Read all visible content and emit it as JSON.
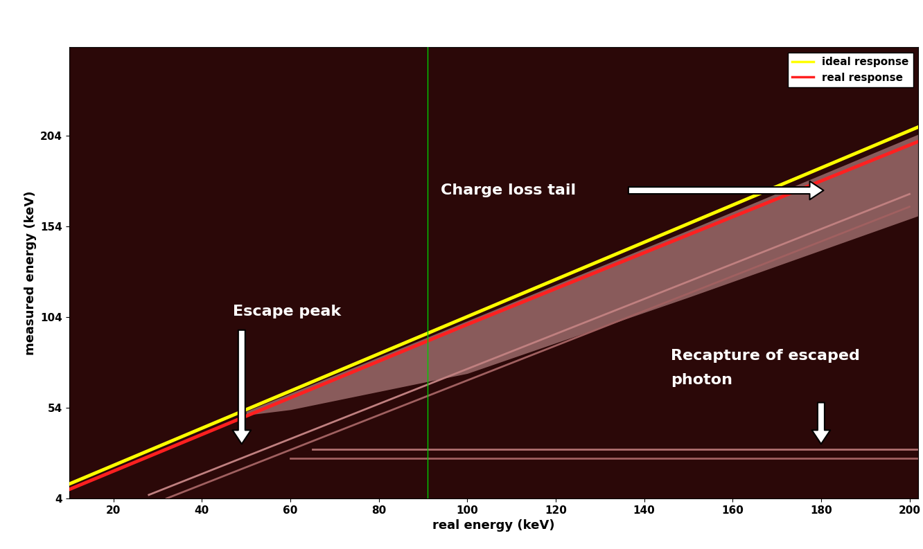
{
  "chart_data": {
    "type": "line",
    "xlabel": "real energy (keV)",
    "ylabel": "measured energy (keV)",
    "xlim": [
      10,
      202
    ],
    "ylim": [
      4,
      253
    ],
    "xticks": [
      20,
      40,
      60,
      80,
      100,
      120,
      140,
      160,
      180,
      200
    ],
    "yticks": [
      4,
      54,
      104,
      154,
      204
    ],
    "legend": "upper right",
    "series": [
      {
        "name": "ideal response",
        "color": "#ffff00",
        "x": [
          10,
          202
        ],
        "values": [
          12,
          209
        ]
      },
      {
        "name": "real response",
        "color": "#ff2020",
        "x": [
          10,
          100,
          202
        ],
        "values": [
          9,
          100,
          201
        ]
      }
    ],
    "charge_loss_tail": {
      "color": "#d8a0a0",
      "x": [
        50,
        60,
        100,
        150,
        202
      ],
      "upper": [
        52,
        62,
        102,
        152,
        205
      ],
      "lower": [
        50,
        53,
        73,
        115,
        160
      ]
    },
    "escape_peak_lines": [
      {
        "color": "#c08080",
        "x": [
          28,
          200
        ],
        "values": [
          6,
          172
        ]
      },
      {
        "color": "#a06060",
        "x": [
          32,
          200
        ],
        "values": [
          4,
          165
        ]
      }
    ],
    "recapture_lines": [
      {
        "color": "#b07070",
        "x": [
          65,
          202
        ],
        "values": [
          31,
          31
        ]
      },
      {
        "color": "#a06060",
        "x": [
          60,
          202
        ],
        "values": [
          26,
          26
        ]
      }
    ],
    "vline": {
      "x": 91,
      "color": "#00cc00"
    },
    "annotations": [
      "Charge loss tail",
      "Escape peak",
      "Recapture of escaped\nphoton"
    ]
  }
}
